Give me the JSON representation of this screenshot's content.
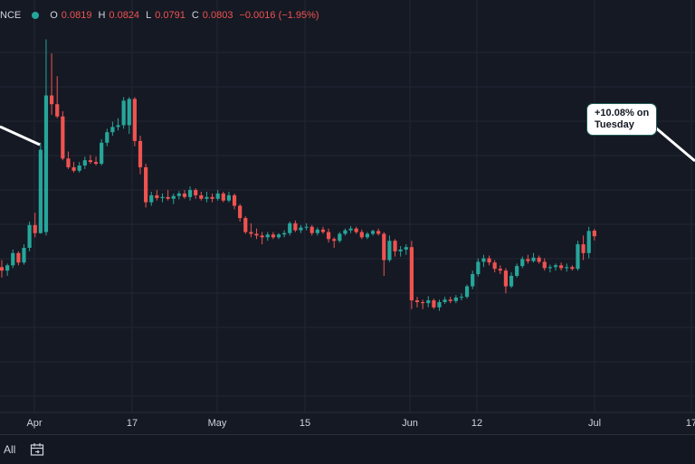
{
  "legend": {
    "source": "NCE",
    "o_label": "O",
    "o_value": "0.0819",
    "h_label": "H",
    "h_value": "0.0824",
    "l_label": "L",
    "l_value": "0.0791",
    "c_label": "C",
    "c_value": "0.0803",
    "change": "−0.0016 (−1.95%)"
  },
  "callout": {
    "line1": "+10.08% on",
    "line2": "Tuesday"
  },
  "bottom": {
    "range_label": "All",
    "calendar_icon": "calendar-icon"
  },
  "colors": {
    "up": "#26a69a",
    "down": "#ef5350",
    "background": "#151924",
    "grid": "#222633"
  },
  "chart_data": {
    "type": "candlestick",
    "x_ticks": [
      "Apr",
      "17",
      "May",
      "15",
      "Jun",
      "12",
      "Jul",
      "17"
    ],
    "ylim": [
      0.03,
      0.14
    ],
    "candles": [
      {
        "date": "Mar 26",
        "o": 0.0715,
        "h": 0.0735,
        "l": 0.0685,
        "c": 0.0705
      },
      {
        "date": "Mar 27",
        "o": 0.0705,
        "h": 0.0725,
        "l": 0.069,
        "c": 0.072
      },
      {
        "date": "Mar 28",
        "o": 0.072,
        "h": 0.0765,
        "l": 0.0712,
        "c": 0.0755
      },
      {
        "date": "Mar 29",
        "o": 0.0755,
        "h": 0.076,
        "l": 0.072,
        "c": 0.0728
      },
      {
        "date": "Mar 30",
        "o": 0.0728,
        "h": 0.078,
        "l": 0.0722,
        "c": 0.077
      },
      {
        "date": "Mar 31",
        "o": 0.077,
        "h": 0.0845,
        "l": 0.076,
        "c": 0.0835
      },
      {
        "date": "Apr 1",
        "o": 0.0835,
        "h": 0.087,
        "l": 0.08,
        "c": 0.0812
      },
      {
        "date": "Apr 2",
        "o": 0.0812,
        "h": 0.107,
        "l": 0.081,
        "c": 0.105
      },
      {
        "date": "Apr 3",
        "o": 0.0815,
        "h": 0.1365,
        "l": 0.0805,
        "c": 0.1205
      },
      {
        "date": "Apr 4",
        "o": 0.1205,
        "h": 0.1325,
        "l": 0.115,
        "c": 0.118
      },
      {
        "date": "Apr 5",
        "o": 0.118,
        "h": 0.126,
        "l": 0.114,
        "c": 0.1145
      },
      {
        "date": "Apr 6",
        "o": 0.1145,
        "h": 0.116,
        "l": 0.102,
        "c": 0.1025
      },
      {
        "date": "Apr 7",
        "o": 0.1025,
        "h": 0.1045,
        "l": 0.0995,
        "c": 0.1
      },
      {
        "date": "Apr 8",
        "o": 0.1,
        "h": 0.1015,
        "l": 0.0985,
        "c": 0.099
      },
      {
        "date": "Apr 9",
        "o": 0.099,
        "h": 0.1015,
        "l": 0.0985,
        "c": 0.1005
      },
      {
        "date": "Apr 10",
        "o": 0.1005,
        "h": 0.103,
        "l": 0.0995,
        "c": 0.102
      },
      {
        "date": "Apr 11",
        "o": 0.102,
        "h": 0.1035,
        "l": 0.101,
        "c": 0.1015
      },
      {
        "date": "Apr 12",
        "o": 0.1015,
        "h": 0.103,
        "l": 0.1005,
        "c": 0.101
      },
      {
        "date": "Apr 13",
        "o": 0.101,
        "h": 0.108,
        "l": 0.1005,
        "c": 0.107
      },
      {
        "date": "Apr 14",
        "o": 0.107,
        "h": 0.111,
        "l": 0.106,
        "c": 0.11
      },
      {
        "date": "Apr 15",
        "o": 0.11,
        "h": 0.113,
        "l": 0.109,
        "c": 0.1115
      },
      {
        "date": "Apr 16",
        "o": 0.1115,
        "h": 0.114,
        "l": 0.1105,
        "c": 0.112
      },
      {
        "date": "Apr 17",
        "o": 0.112,
        "h": 0.12,
        "l": 0.111,
        "c": 0.119
      },
      {
        "date": "Apr 18",
        "o": 0.112,
        "h": 0.12,
        "l": 0.1095,
        "c": 0.1195
      },
      {
        "date": "Apr 19",
        "o": 0.1195,
        "h": 0.12,
        "l": 0.106,
        "c": 0.1075
      },
      {
        "date": "Apr 20",
        "o": 0.1075,
        "h": 0.109,
        "l": 0.098,
        "c": 0.1
      },
      {
        "date": "Apr 21",
        "o": 0.1,
        "h": 0.101,
        "l": 0.0885,
        "c": 0.09
      },
      {
        "date": "Apr 22",
        "o": 0.09,
        "h": 0.093,
        "l": 0.089,
        "c": 0.092
      },
      {
        "date": "Apr 23",
        "o": 0.092,
        "h": 0.0935,
        "l": 0.0905,
        "c": 0.0912
      },
      {
        "date": "Apr 24",
        "o": 0.0912,
        "h": 0.0925,
        "l": 0.09,
        "c": 0.0915
      },
      {
        "date": "Apr 25",
        "o": 0.0915,
        "h": 0.0935,
        "l": 0.0905,
        "c": 0.091
      },
      {
        "date": "Apr 26",
        "o": 0.091,
        "h": 0.0925,
        "l": 0.0895,
        "c": 0.0918
      },
      {
        "date": "Apr 27",
        "o": 0.0918,
        "h": 0.0932,
        "l": 0.0908,
        "c": 0.0925
      },
      {
        "date": "Apr 28",
        "o": 0.0925,
        "h": 0.0935,
        "l": 0.091,
        "c": 0.0915
      },
      {
        "date": "Apr 29",
        "o": 0.0915,
        "h": 0.0945,
        "l": 0.0905,
        "c": 0.0935
      },
      {
        "date": "Apr 30",
        "o": 0.0935,
        "h": 0.094,
        "l": 0.091,
        "c": 0.092
      },
      {
        "date": "May 1",
        "o": 0.092,
        "h": 0.093,
        "l": 0.0905,
        "c": 0.091
      },
      {
        "date": "May 2",
        "o": 0.091,
        "h": 0.093,
        "l": 0.09,
        "c": 0.0915
      },
      {
        "date": "May 3",
        "o": 0.0915,
        "h": 0.0925,
        "l": 0.09,
        "c": 0.091
      },
      {
        "date": "May 4",
        "o": 0.091,
        "h": 0.0935,
        "l": 0.0905,
        "c": 0.0925
      },
      {
        "date": "May 5",
        "o": 0.0925,
        "h": 0.093,
        "l": 0.09,
        "c": 0.0905
      },
      {
        "date": "May 6",
        "o": 0.0905,
        "h": 0.093,
        "l": 0.09,
        "c": 0.092
      },
      {
        "date": "May 7",
        "o": 0.092,
        "h": 0.0925,
        "l": 0.088,
        "c": 0.089
      },
      {
        "date": "May 8",
        "o": 0.089,
        "h": 0.0895,
        "l": 0.0845,
        "c": 0.0855
      },
      {
        "date": "May 9",
        "o": 0.0855,
        "h": 0.086,
        "l": 0.081,
        "c": 0.0815
      },
      {
        "date": "May 10",
        "o": 0.0815,
        "h": 0.084,
        "l": 0.08,
        "c": 0.081
      },
      {
        "date": "May 11",
        "o": 0.081,
        "h": 0.0825,
        "l": 0.0795,
        "c": 0.0805
      },
      {
        "date": "May 12",
        "o": 0.0805,
        "h": 0.0815,
        "l": 0.078,
        "c": 0.08
      },
      {
        "date": "May 13",
        "o": 0.08,
        "h": 0.0815,
        "l": 0.079,
        "c": 0.0808
      },
      {
        "date": "May 14",
        "o": 0.0808,
        "h": 0.0815,
        "l": 0.0795,
        "c": 0.08
      },
      {
        "date": "May 15",
        "o": 0.08,
        "h": 0.0812,
        "l": 0.0795,
        "c": 0.0808
      },
      {
        "date": "May 16",
        "o": 0.0808,
        "h": 0.082,
        "l": 0.08,
        "c": 0.0812
      },
      {
        "date": "May 17",
        "o": 0.0812,
        "h": 0.0845,
        "l": 0.0805,
        "c": 0.084
      },
      {
        "date": "May 18",
        "o": 0.084,
        "h": 0.0848,
        "l": 0.0815,
        "c": 0.082
      },
      {
        "date": "May 19",
        "o": 0.082,
        "h": 0.0835,
        "l": 0.0812,
        "c": 0.0828
      },
      {
        "date": "May 20",
        "o": 0.0828,
        "h": 0.084,
        "l": 0.082,
        "c": 0.083
      },
      {
        "date": "May 21",
        "o": 0.083,
        "h": 0.0835,
        "l": 0.0805,
        "c": 0.0812
      },
      {
        "date": "May 22",
        "o": 0.0812,
        "h": 0.0828,
        "l": 0.0805,
        "c": 0.0822
      },
      {
        "date": "May 23",
        "o": 0.0822,
        "h": 0.083,
        "l": 0.081,
        "c": 0.0815
      },
      {
        "date": "May 24",
        "o": 0.0815,
        "h": 0.0825,
        "l": 0.0785,
        "c": 0.0795
      },
      {
        "date": "May 25",
        "o": 0.0795,
        "h": 0.08,
        "l": 0.077,
        "c": 0.079
      },
      {
        "date": "May 26",
        "o": 0.079,
        "h": 0.0815,
        "l": 0.0785,
        "c": 0.081
      },
      {
        "date": "May 27",
        "o": 0.081,
        "h": 0.0825,
        "l": 0.0805,
        "c": 0.082
      },
      {
        "date": "May 28",
        "o": 0.082,
        "h": 0.0832,
        "l": 0.0812,
        "c": 0.0825
      },
      {
        "date": "May 29",
        "o": 0.0825,
        "h": 0.083,
        "l": 0.081,
        "c": 0.0815
      },
      {
        "date": "May 30",
        "o": 0.0815,
        "h": 0.0822,
        "l": 0.0795,
        "c": 0.08
      },
      {
        "date": "May 31",
        "o": 0.08,
        "h": 0.0815,
        "l": 0.0795,
        "c": 0.081
      },
      {
        "date": "Jun 1",
        "o": 0.081,
        "h": 0.0822,
        "l": 0.0805,
        "c": 0.0818
      },
      {
        "date": "Jun 2",
        "o": 0.0818,
        "h": 0.0825,
        "l": 0.0805,
        "c": 0.081
      },
      {
        "date": "Jun 3",
        "o": 0.081,
        "h": 0.0815,
        "l": 0.069,
        "c": 0.0735
      },
      {
        "date": "Jun 4",
        "o": 0.0735,
        "h": 0.0805,
        "l": 0.073,
        "c": 0.079
      },
      {
        "date": "Jun 5",
        "o": 0.079,
        "h": 0.0795,
        "l": 0.0745,
        "c": 0.076
      },
      {
        "date": "Jun 6",
        "o": 0.076,
        "h": 0.0775,
        "l": 0.0745,
        "c": 0.0765
      },
      {
        "date": "Jun 7",
        "o": 0.0765,
        "h": 0.078,
        "l": 0.075,
        "c": 0.0772
      },
      {
        "date": "Jun 8",
        "o": 0.0772,
        "h": 0.079,
        "l": 0.0595,
        "c": 0.062
      },
      {
        "date": "Jun 9",
        "o": 0.062,
        "h": 0.063,
        "l": 0.06,
        "c": 0.0615
      },
      {
        "date": "Jun 10",
        "o": 0.0615,
        "h": 0.0622,
        "l": 0.0595,
        "c": 0.0612
      },
      {
        "date": "Jun 11",
        "o": 0.0612,
        "h": 0.0632,
        "l": 0.06,
        "c": 0.062
      },
      {
        "date": "Jun 12",
        "o": 0.062,
        "h": 0.0625,
        "l": 0.0595,
        "c": 0.06
      },
      {
        "date": "Jun 13",
        "o": 0.06,
        "h": 0.0622,
        "l": 0.059,
        "c": 0.0615
      },
      {
        "date": "Jun 14",
        "o": 0.0615,
        "h": 0.063,
        "l": 0.061,
        "c": 0.0622
      },
      {
        "date": "Jun 15",
        "o": 0.0622,
        "h": 0.063,
        "l": 0.0612,
        "c": 0.0618
      },
      {
        "date": "Jun 16",
        "o": 0.0618,
        "h": 0.0635,
        "l": 0.0612,
        "c": 0.0628
      },
      {
        "date": "Jun 17",
        "o": 0.0628,
        "h": 0.064,
        "l": 0.062,
        "c": 0.063
      },
      {
        "date": "Jun 18",
        "o": 0.063,
        "h": 0.0665,
        "l": 0.0625,
        "c": 0.066
      },
      {
        "date": "Jun 19",
        "o": 0.066,
        "h": 0.0705,
        "l": 0.0652,
        "c": 0.0695
      },
      {
        "date": "Jun 20",
        "o": 0.0695,
        "h": 0.074,
        "l": 0.0688,
        "c": 0.073
      },
      {
        "date": "Jun 21",
        "o": 0.073,
        "h": 0.075,
        "l": 0.0715,
        "c": 0.074
      },
      {
        "date": "Jun 22",
        "o": 0.074,
        "h": 0.0748,
        "l": 0.072,
        "c": 0.0728
      },
      {
        "date": "Jun 23",
        "o": 0.0728,
        "h": 0.0735,
        "l": 0.07,
        "c": 0.071
      },
      {
        "date": "Jun 24",
        "o": 0.071,
        "h": 0.072,
        "l": 0.0695,
        "c": 0.0705
      },
      {
        "date": "Jun 25",
        "o": 0.0705,
        "h": 0.0712,
        "l": 0.064,
        "c": 0.066
      },
      {
        "date": "Jun 26",
        "o": 0.066,
        "h": 0.07,
        "l": 0.0655,
        "c": 0.069
      },
      {
        "date": "Jun 27",
        "o": 0.069,
        "h": 0.0725,
        "l": 0.0685,
        "c": 0.0718
      },
      {
        "date": "Jun 28",
        "o": 0.0718,
        "h": 0.0745,
        "l": 0.0712,
        "c": 0.0738
      },
      {
        "date": "Jun 29",
        "o": 0.0738,
        "h": 0.075,
        "l": 0.0725,
        "c": 0.0732
      },
      {
        "date": "Jun 30",
        "o": 0.0732,
        "h": 0.0755,
        "l": 0.0728,
        "c": 0.0742
      },
      {
        "date": "Jul 1",
        "o": 0.0742,
        "h": 0.0748,
        "l": 0.0725,
        "c": 0.073
      },
      {
        "date": "Jul 2",
        "o": 0.073,
        "h": 0.074,
        "l": 0.0705,
        "c": 0.0712
      },
      {
        "date": "Jul 3",
        "o": 0.0712,
        "h": 0.0722,
        "l": 0.07,
        "c": 0.0715
      },
      {
        "date": "Jul 4",
        "o": 0.0715,
        "h": 0.0725,
        "l": 0.0705,
        "c": 0.072
      },
      {
        "date": "Jul 5",
        "o": 0.072,
        "h": 0.0728,
        "l": 0.0705,
        "c": 0.0712
      },
      {
        "date": "Jul 6",
        "o": 0.0712,
        "h": 0.0725,
        "l": 0.0702,
        "c": 0.0715
      },
      {
        "date": "Jul 7",
        "o": 0.0715,
        "h": 0.072,
        "l": 0.0705,
        "c": 0.071
      },
      {
        "date": "Jul 8",
        "o": 0.071,
        "h": 0.079,
        "l": 0.0705,
        "c": 0.078
      },
      {
        "date": "Jul 9",
        "o": 0.078,
        "h": 0.0805,
        "l": 0.0735,
        "c": 0.0755
      },
      {
        "date": "Jul 10",
        "o": 0.0755,
        "h": 0.083,
        "l": 0.074,
        "c": 0.0818
      },
      {
        "date": "Jul 11",
        "o": 0.0819,
        "h": 0.0824,
        "l": 0.0791,
        "c": 0.0803
      }
    ]
  }
}
